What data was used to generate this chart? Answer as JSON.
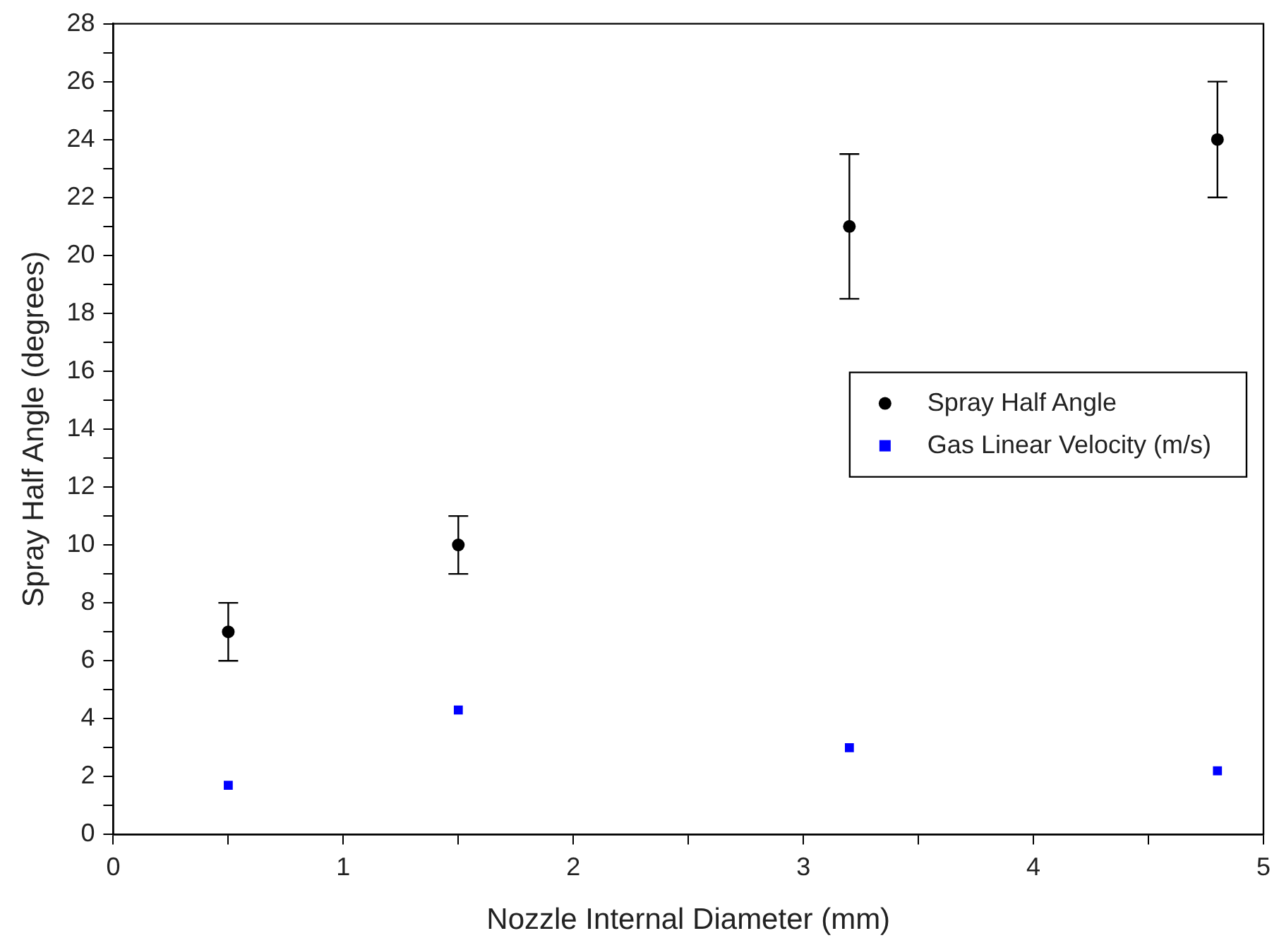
{
  "chart_data": {
    "type": "scatter",
    "xlabel": "Nozzle Internal Diameter (mm)",
    "ylabel": "Spray Half Angle (degrees)",
    "xlim": [
      0,
      5
    ],
    "ylim": [
      0,
      28
    ],
    "xticks": [
      0,
      {
        "value": 0.5,
        "label": null
      },
      1,
      {
        "value": 1.5,
        "label": null
      },
      2,
      {
        "value": 2.5,
        "label": null
      },
      3,
      {
        "value": 3.5,
        "label": null
      },
      4,
      {
        "value": 4.5,
        "label": null
      },
      5
    ],
    "yticks": [
      0,
      {
        "value": 1,
        "label": null
      },
      2,
      {
        "value": 3,
        "label": null
      },
      4,
      {
        "value": 5,
        "label": null
      },
      6,
      {
        "value": 7,
        "label": null
      },
      8,
      {
        "value": 9,
        "label": null
      },
      10,
      {
        "value": 11,
        "label": null
      },
      12,
      {
        "value": 13,
        "label": null
      },
      14,
      {
        "value": 15,
        "label": null
      },
      16,
      {
        "value": 17,
        "label": null
      },
      18,
      {
        "value": 19,
        "label": null
      },
      20,
      {
        "value": 21,
        "label": null
      },
      22,
      {
        "value": 23,
        "label": null
      },
      24,
      {
        "value": 25,
        "label": null
      },
      26,
      {
        "value": 27,
        "label": null
      },
      28
    ],
    "grid": false,
    "legend": "right",
    "series": [
      {
        "name": "Spray Half Angle",
        "color": "#000000",
        "marker": "circle",
        "x": [
          0.5,
          1.5,
          3.2,
          4.8
        ],
        "values": [
          7,
          10,
          21,
          24
        ],
        "errors": [
          1,
          1,
          2.5,
          2
        ]
      },
      {
        "name": "Gas Linear Velocity (m/s)",
        "color": "#0000ff",
        "marker": "square",
        "x": [
          0.5,
          1.5,
          3.2,
          4.8
        ],
        "values": [
          1.7,
          4.3,
          3.0,
          2.2
        ]
      }
    ]
  }
}
